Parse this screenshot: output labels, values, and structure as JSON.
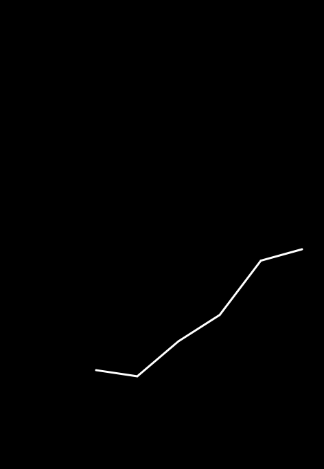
{
  "colors": {
    "background": "#000000",
    "series_line": "#ffffff"
  },
  "chart_data": {
    "type": "line",
    "title": "",
    "xlabel": "",
    "ylabel": "",
    "grid": false,
    "legend": "none",
    "series": [
      {
        "points": [
          {
            "x": 1,
            "y": 1.4
          },
          {
            "x": 2,
            "y": 0.0
          },
          {
            "x": 3,
            "y": 8.0
          },
          {
            "x": 4,
            "y": 14.0
          },
          {
            "x": 5,
            "y": 26.4
          },
          {
            "x": 6,
            "y": 29.0
          }
        ]
      }
    ]
  }
}
